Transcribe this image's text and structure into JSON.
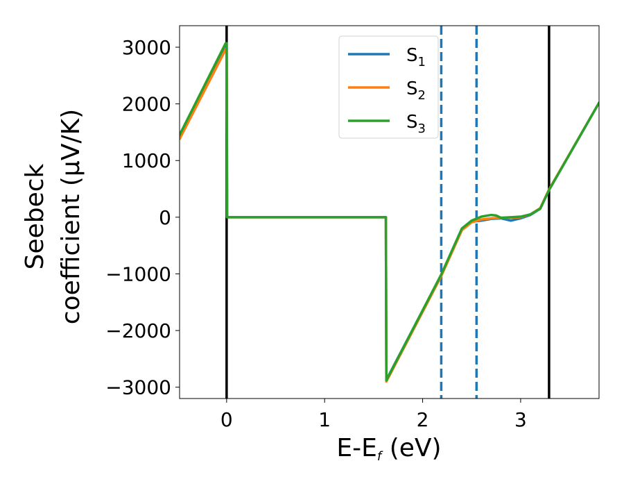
{
  "chart_data": {
    "type": "line",
    "xlabel": "E-E",
    "xlabel_sub": "f",
    "xlabel_unit": " (eV)",
    "ylabel_line1": "Seebeck",
    "ylabel_line2": "coefficient  (μV/K)",
    "xlim": [
      -0.48,
      3.8
    ],
    "ylim": [
      -3200,
      3380
    ],
    "xticks": [
      0,
      1,
      2,
      3
    ],
    "xtick_labels": [
      "0",
      "1",
      "2",
      "3"
    ],
    "yticks": [
      -3000,
      -2000,
      -1000,
      0,
      1000,
      2000,
      3000
    ],
    "ytick_labels": [
      "−3000",
      "−2000",
      "−1000",
      "0",
      "1000",
      "2000",
      "3000"
    ],
    "legend_placement": "upper-center",
    "grid": false,
    "vlines": [
      {
        "x": 0.0,
        "style": "solid",
        "color": "#000000"
      },
      {
        "x": 2.19,
        "style": "dashed",
        "color": "#1f77b4"
      },
      {
        "x": 2.55,
        "style": "dashed",
        "color": "#1f77b4"
      },
      {
        "x": 3.29,
        "style": "solid",
        "color": "#000000"
      }
    ],
    "series": [
      {
        "name": "S",
        "sub": "1",
        "color": "#1f77b4",
        "x": [
          -0.48,
          -0.01,
          0.0,
          0.005,
          1.62,
          1.625,
          1.63,
          2.19,
          2.4,
          2.5,
          2.6,
          2.7,
          2.8,
          2.9,
          3.0,
          3.1,
          3.2,
          3.29,
          3.8
        ],
        "y": [
          1450,
          3050,
          3050,
          0,
          0,
          0,
          -2870,
          -1020,
          -220,
          -80,
          -60,
          -30,
          -20,
          -60,
          -20,
          40,
          150,
          480,
          2020
        ]
      },
      {
        "name": "S",
        "sub": "2",
        "color": "#ff7f0e",
        "x": [
          -0.48,
          -0.01,
          0.0,
          0.005,
          1.62,
          1.625,
          1.63,
          2.19,
          2.4,
          2.5,
          2.6,
          2.7,
          2.8,
          2.9,
          3.0,
          3.1,
          3.2,
          3.29,
          3.8
        ],
        "y": [
          1380,
          2960,
          2960,
          0,
          0,
          0,
          -2900,
          -1040,
          -230,
          -90,
          -40,
          -20,
          -10,
          -10,
          0,
          50,
          160,
          490,
          2020
        ]
      },
      {
        "name": "S",
        "sub": "3",
        "color": "#2ca02c",
        "x": [
          -0.48,
          -0.01,
          0.0,
          0.005,
          1.62,
          1.625,
          1.63,
          2.19,
          2.4,
          2.5,
          2.6,
          2.7,
          2.75,
          2.8,
          2.9,
          3.0,
          3.1,
          3.2,
          3.29,
          3.8
        ],
        "y": [
          1450,
          3070,
          3070,
          0,
          0,
          0,
          -2880,
          -1010,
          -200,
          -60,
          10,
          40,
          30,
          -10,
          0,
          10,
          50,
          150,
          480,
          2020
        ]
      }
    ]
  }
}
